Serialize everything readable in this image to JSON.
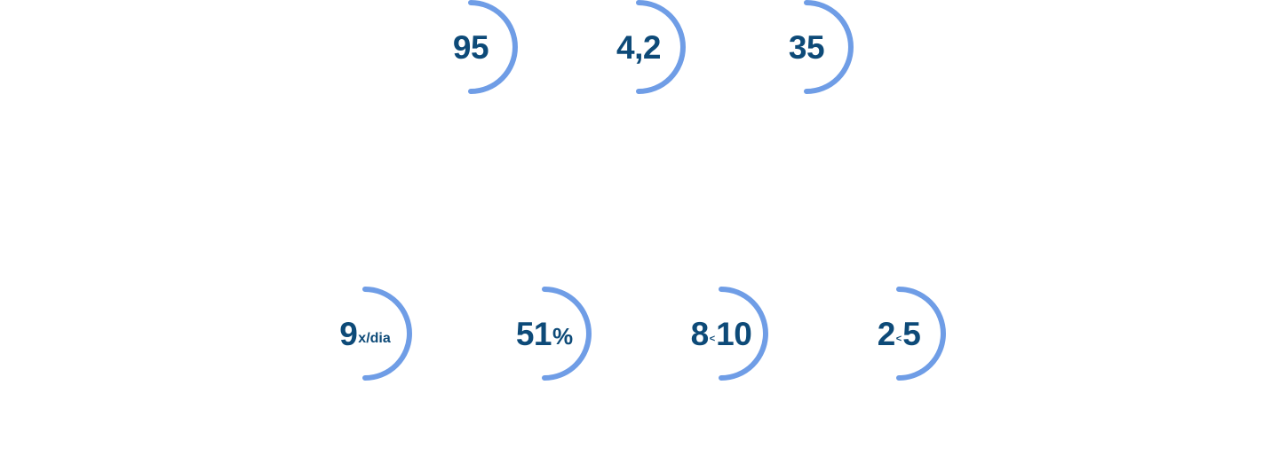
{
  "colors": {
    "arc": "#6f9de6",
    "text": "#0d4a78",
    "background": "#ffffff"
  },
  "stats_top": [
    {
      "value": "95"
    },
    {
      "value": "4,2"
    },
    {
      "value": "35"
    }
  ],
  "stats_bottom": [
    {
      "value": "9",
      "suffix": "x/dia"
    },
    {
      "value": "51",
      "suffix": "%"
    },
    {
      "value_a": "8",
      "separator": "<",
      "value_b": "10"
    },
    {
      "value_a": "2",
      "separator": "<",
      "value_b": "5"
    }
  ]
}
